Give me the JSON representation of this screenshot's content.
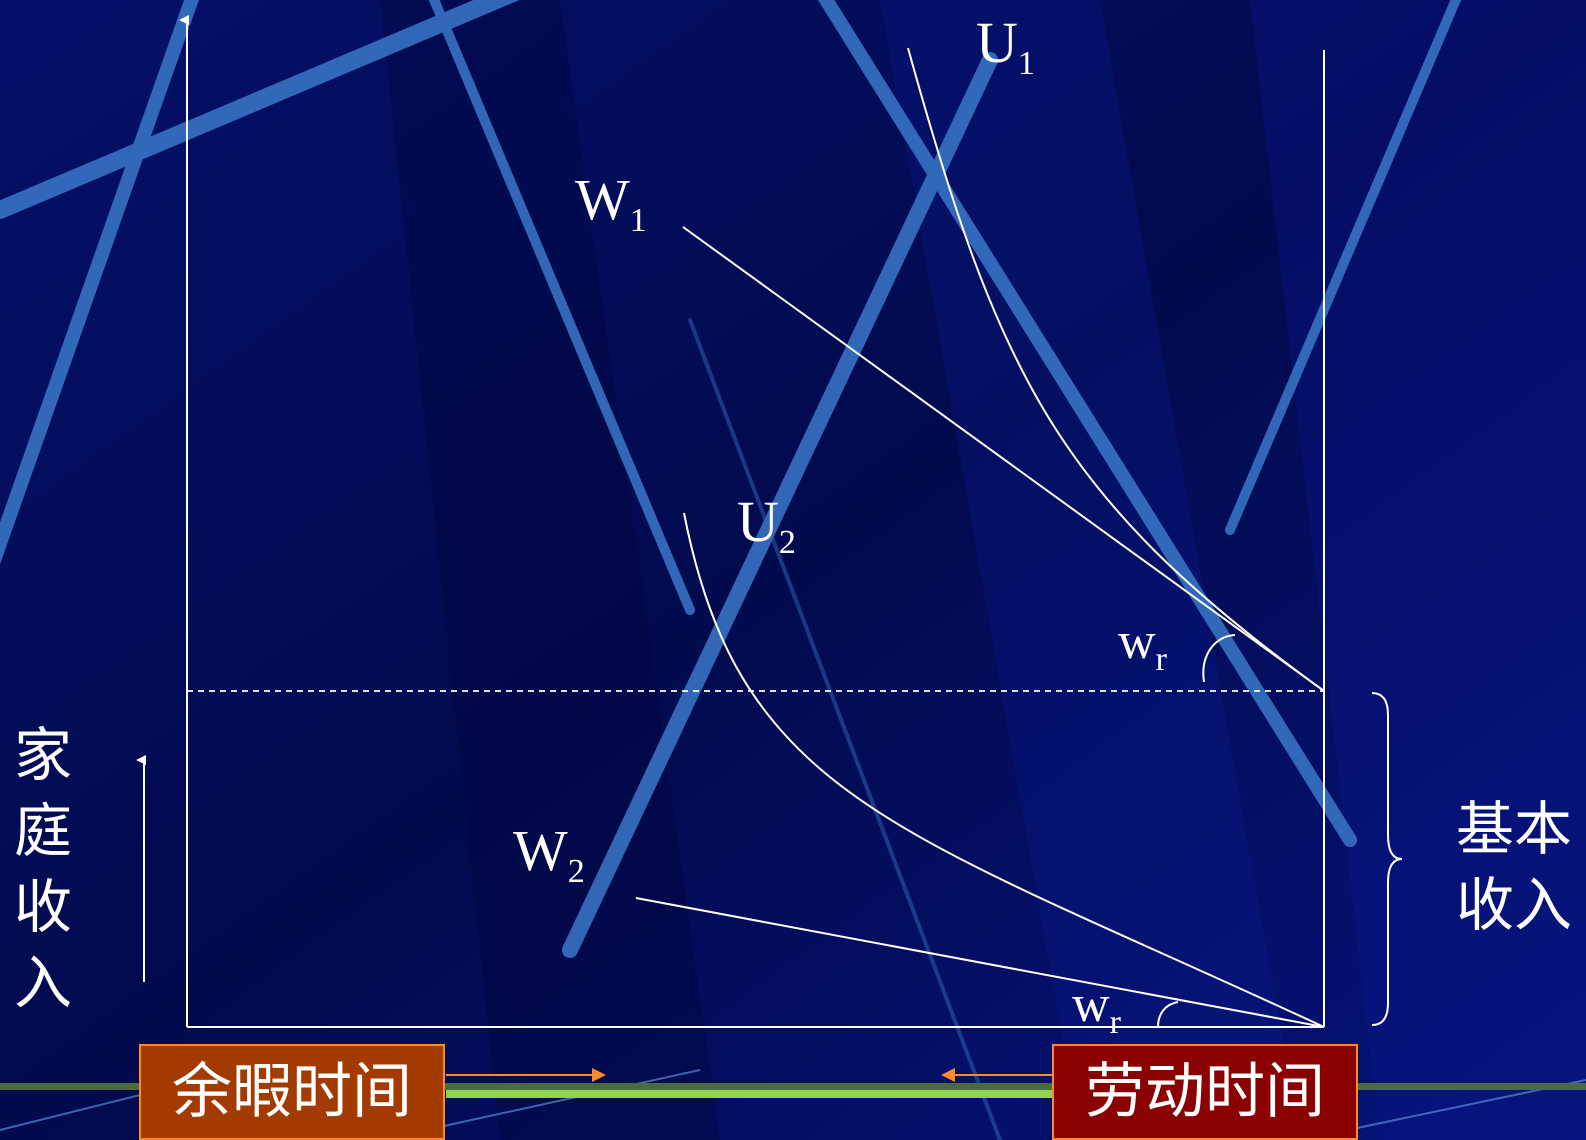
{
  "labels": {
    "u1": {
      "main": "U",
      "sub": "1"
    },
    "u2": {
      "main": "U",
      "sub": "2"
    },
    "w1": {
      "main": "W",
      "sub": "1"
    },
    "w2": {
      "main": "W",
      "sub": "2"
    },
    "wr_top": {
      "main": "w",
      "sub": "r"
    },
    "wr_bottom": {
      "main": "w",
      "sub": "r"
    }
  },
  "y_axis_label": "家\n庭\n收\n入",
  "base_income_label": "基本\n收入",
  "leisure_button": "余暇时间",
  "labor_button": "劳动时间",
  "colors": {
    "background": "#000a5c",
    "stripe": "#3a78c8",
    "line": "#ffffff",
    "leisure_box": "#a33a00",
    "labor_box": "#8b0000",
    "arrow": "#ff8a2a",
    "bottom_band": "#8fd44c"
  }
}
